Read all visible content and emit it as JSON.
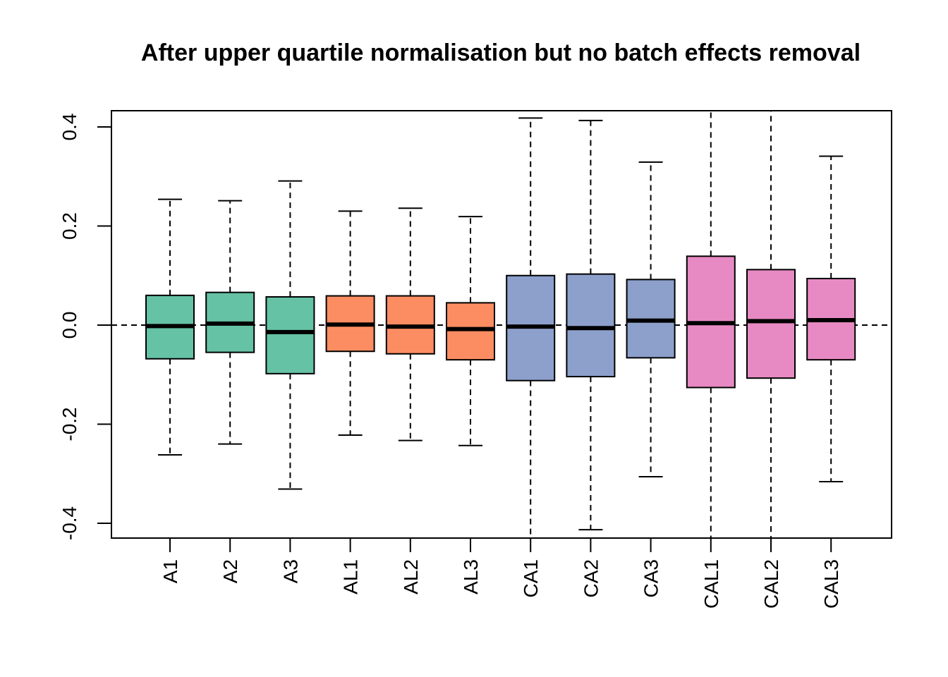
{
  "chart_data": {
    "type": "boxplot",
    "title": "After upper quartile normalisation but no batch effects removal",
    "xlabel": "",
    "ylabel": "",
    "ylim": [
      -0.432,
      0.432
    ],
    "yticks": [
      "-0.4",
      "-0.2",
      "0.0",
      "0.2",
      "0.4"
    ],
    "yticks_values": [
      -0.4,
      -0.2,
      0.0,
      0.2,
      0.4
    ],
    "reference_line": 0.0,
    "grid": false,
    "categories": [
      "A1",
      "A2",
      "A3",
      "AL1",
      "AL2",
      "AL3",
      "CA1",
      "CA2",
      "CA3",
      "CAL1",
      "CAL2",
      "CAL3"
    ],
    "colors": [
      "#66c2a5",
      "#66c2a5",
      "#66c2a5",
      "#fc8d62",
      "#fc8d62",
      "#fc8d62",
      "#8da0cb",
      "#8da0cb",
      "#8da0cb",
      "#e78ac3",
      "#e78ac3",
      "#e78ac3"
    ],
    "boxes": [
      {
        "label": "A1",
        "whisker_low": -0.262,
        "q1": -0.068,
        "median": -0.002,
        "q3": 0.06,
        "whisker_high": 0.254
      },
      {
        "label": "A2",
        "whisker_low": -0.24,
        "q1": -0.055,
        "median": 0.003,
        "q3": 0.066,
        "whisker_high": 0.251
      },
      {
        "label": "A3",
        "whisker_low": -0.331,
        "q1": -0.098,
        "median": -0.014,
        "q3": 0.057,
        "whisker_high": 0.291
      },
      {
        "label": "AL1",
        "whisker_low": -0.222,
        "q1": -0.053,
        "median": 0.001,
        "q3": 0.059,
        "whisker_high": 0.23
      },
      {
        "label": "AL2",
        "whisker_low": -0.233,
        "q1": -0.058,
        "median": -0.003,
        "q3": 0.059,
        "whisker_high": 0.236
      },
      {
        "label": "AL3",
        "whisker_low": -0.243,
        "q1": -0.07,
        "median": -0.008,
        "q3": 0.045,
        "whisker_high": 0.219
      },
      {
        "label": "CA1",
        "whisker_low": -0.432,
        "q1": -0.112,
        "median": -0.003,
        "q3": 0.1,
        "whisker_high": 0.418
      },
      {
        "label": "CA2",
        "whisker_low": -0.413,
        "q1": -0.104,
        "median": -0.006,
        "q3": 0.103,
        "whisker_high": 0.413
      },
      {
        "label": "CA3",
        "whisker_low": -0.306,
        "q1": -0.066,
        "median": 0.009,
        "q3": 0.092,
        "whisker_high": 0.329
      },
      {
        "label": "CAL1",
        "whisker_low": -0.432,
        "q1": -0.126,
        "median": 0.004,
        "q3": 0.139,
        "whisker_high": 0.432
      },
      {
        "label": "CAL2",
        "whisker_low": -0.432,
        "q1": -0.107,
        "median": 0.008,
        "q3": 0.112,
        "whisker_high": 0.432
      },
      {
        "label": "CAL3",
        "whisker_low": -0.316,
        "q1": -0.07,
        "median": 0.01,
        "q3": 0.094,
        "whisker_high": 0.341
      }
    ]
  }
}
